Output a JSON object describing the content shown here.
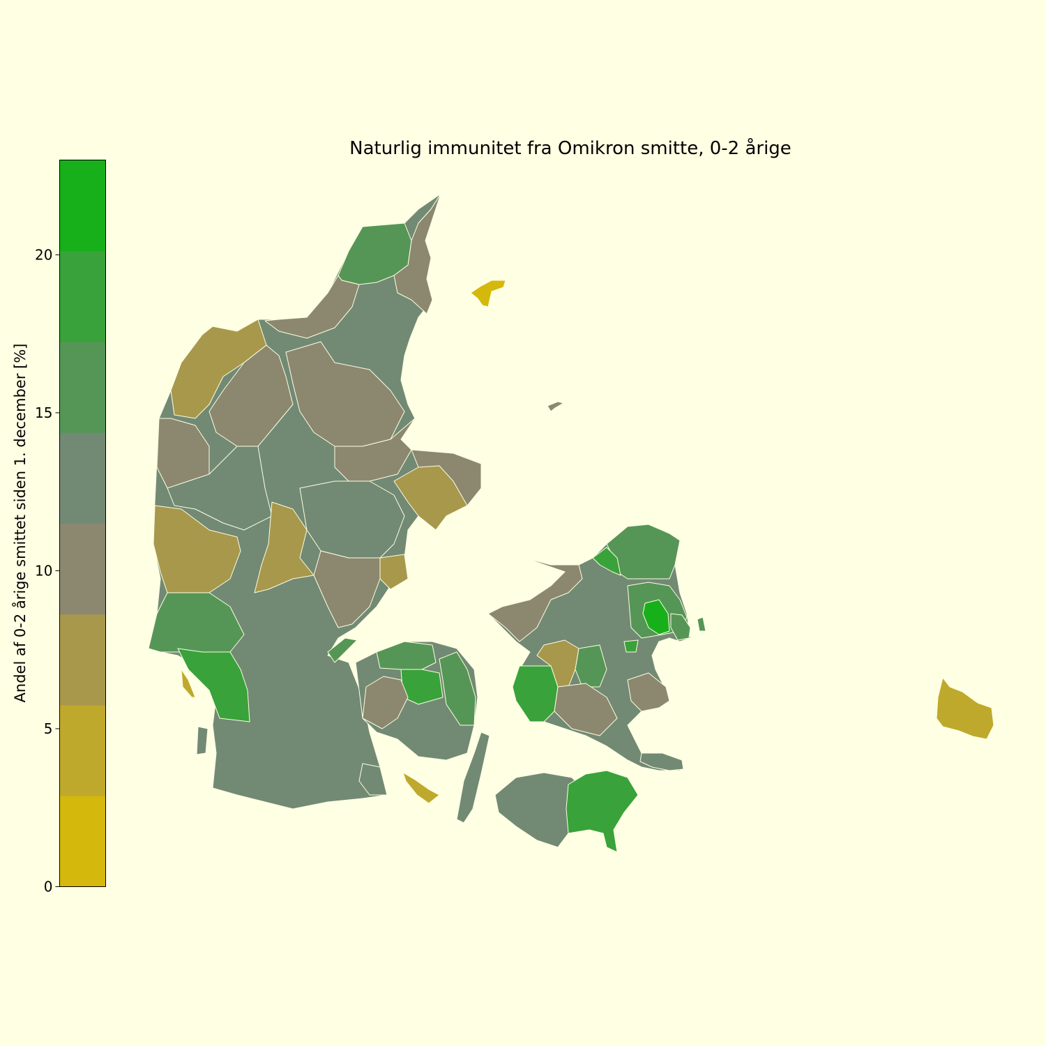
{
  "title": "Naturlig immunitet fra Omikron smitte, 0-2 årige",
  "colorbar": {
    "label": "Andel af 0-2 årige smittet siden 1. december [%]",
    "ticks": [
      0,
      5,
      10,
      15,
      20
    ],
    "min": 0,
    "max": 23,
    "bins": [
      {
        "from": 0,
        "to": 2.875,
        "color": "#d4b80c"
      },
      {
        "from": 2.875,
        "to": 5.75,
        "color": "#bfa92c"
      },
      {
        "from": 5.75,
        "to": 8.625,
        "color": "#a8984c"
      },
      {
        "from": 8.625,
        "to": 11.5,
        "color": "#8c8870"
      },
      {
        "from": 11.5,
        "to": 14.375,
        "color": "#728a74"
      },
      {
        "from": 14.375,
        "to": 17.25,
        "color": "#559656"
      },
      {
        "from": 17.25,
        "to": 20.125,
        "color": "#39a23a"
      },
      {
        "from": 20.125,
        "to": 23,
        "color": "#18b01a"
      }
    ]
  },
  "chart_data": {
    "type": "choropleth",
    "title": "Naturlig immunitet fra Omikron smitte, 0-2 årige",
    "value_label": "Andel af 0-2 årige smittet siden 1. december [%]",
    "value_range": [
      0,
      23
    ],
    "colormap_stops": [
      "#d4b80c",
      "#bfa92c",
      "#a8984c",
      "#8c8870",
      "#728a74",
      "#559656",
      "#39a23a",
      "#18b01a"
    ]
  }
}
